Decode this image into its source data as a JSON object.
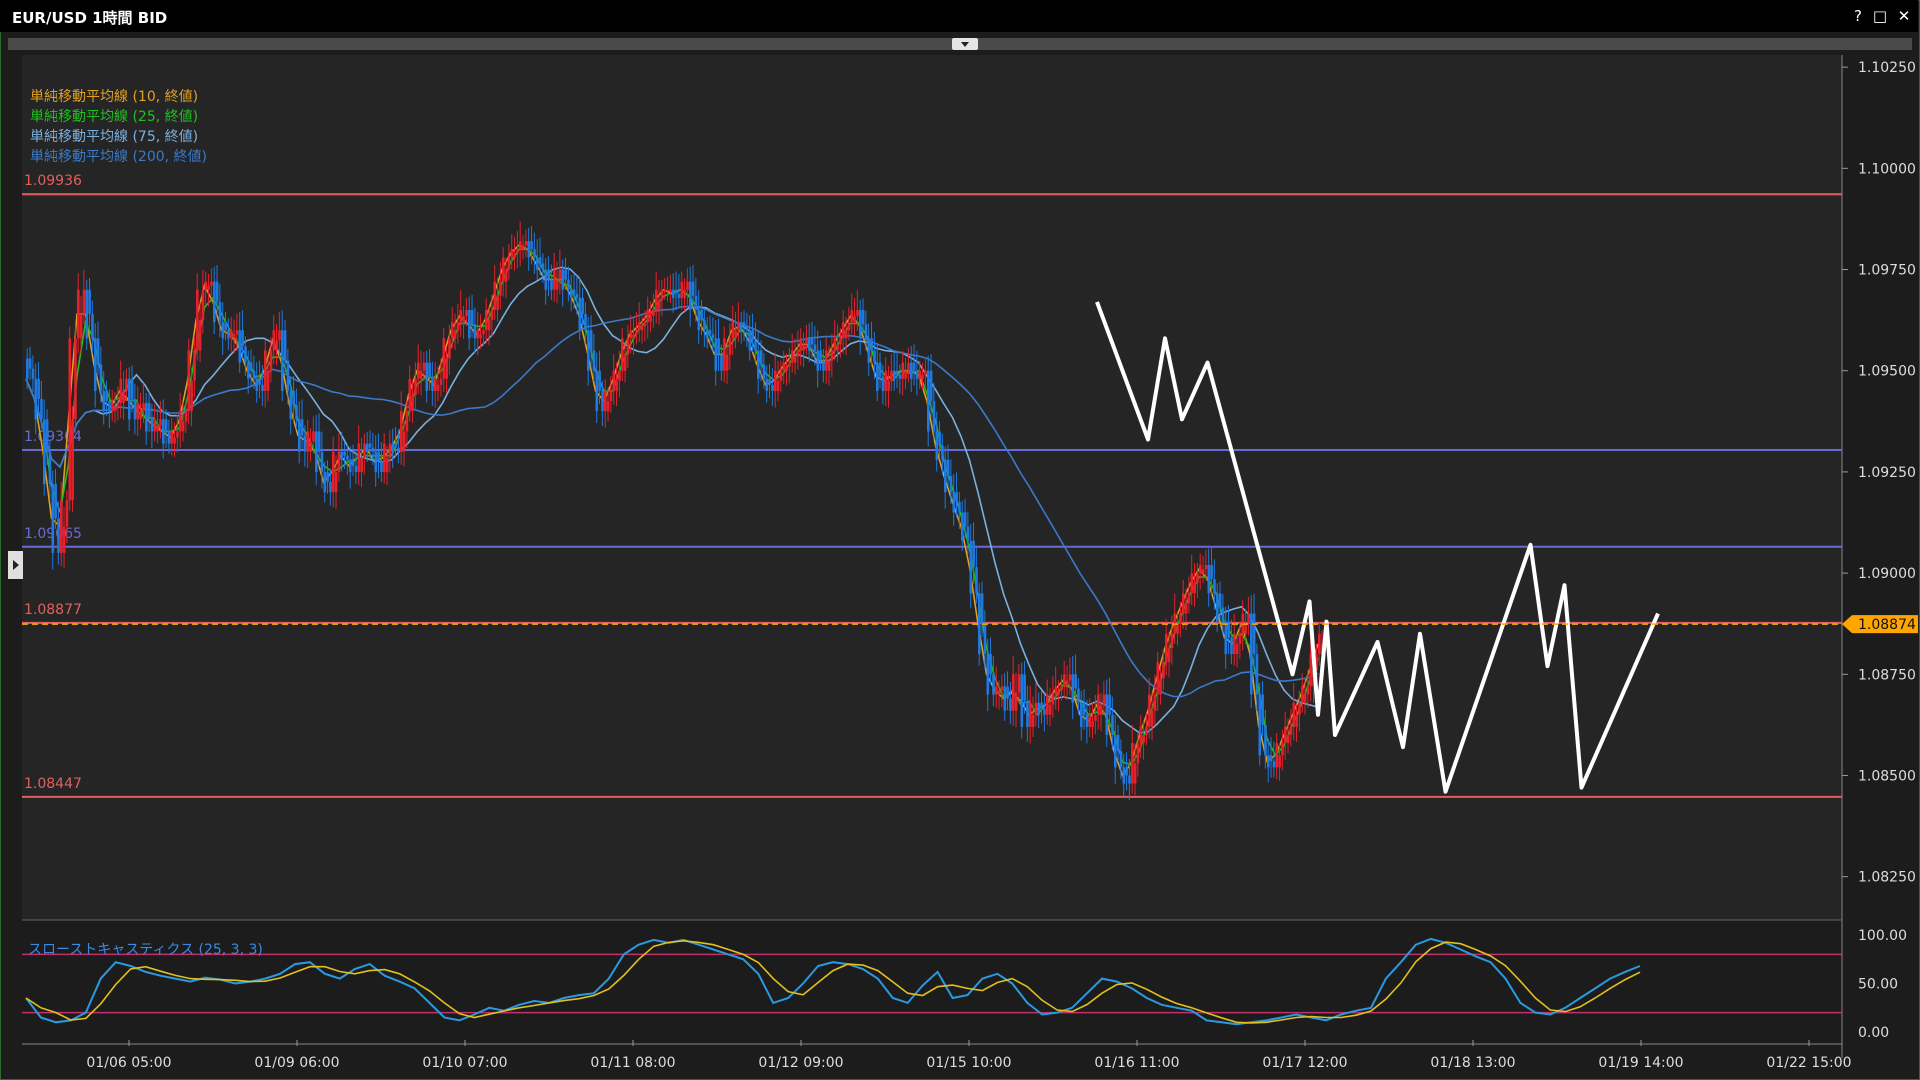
{
  "window": {
    "title": "EUR/USD 1時間 BID",
    "help": "?",
    "maximize": "□",
    "close": "✕"
  },
  "chart_data": {
    "type": "line",
    "symbol": "EUR/USD",
    "price_axis": {
      "min": 1.0818,
      "max": 1.1028,
      "ticks": [
        "1.10250",
        "1.10000",
        "1.09750",
        "1.09500",
        "1.09250",
        "1.09000",
        "1.08750",
        "1.08500",
        "1.08250"
      ]
    },
    "time_axis": {
      "ticks": [
        "01/06 05:00",
        "01/09 06:00",
        "01/10 07:00",
        "01/11 08:00",
        "01/12 09:00",
        "01/15 10:00",
        "01/16 11:00",
        "01/17 12:00",
        "01/18 13:00",
        "01/19 14:00",
        "01/22 15:00"
      ]
    },
    "current_price": {
      "label": "1.08874",
      "value": 1.08874,
      "color": "#ffa500"
    },
    "horizontal_lines": [
      {
        "label": "1.09936",
        "value": 1.09936,
        "color": "#e06060"
      },
      {
        "label": "1.09304",
        "value": 1.09304,
        "color": "#6a6ad6"
      },
      {
        "label": "1.09065",
        "value": 1.09065,
        "color": "#6a6ad6"
      },
      {
        "label": "1.08877",
        "value": 1.08877,
        "color": "#e06060"
      },
      {
        "label": "1.08447",
        "value": 1.08447,
        "color": "#e06060"
      }
    ],
    "legend": [
      {
        "name": "単純移動平均線 (10, 終値)",
        "color": "#e0a020"
      },
      {
        "name": "単純移動平均線 (25, 終値)",
        "color": "#20c020"
      },
      {
        "name": "単純移動平均線 (75, 終値)",
        "color": "#7ab0e0"
      },
      {
        "name": "単純移動平均線 (200, 終値)",
        "color": "#3a7ac8"
      }
    ],
    "colors": {
      "up": "#e8202a",
      "down": "#1e7ae0",
      "grid_bg": "#252525",
      "zigzag": "#ffffff"
    },
    "close_series": [
      1.0948,
      1.0938,
      1.0922,
      1.0905,
      1.0918,
      1.0958,
      1.097,
      1.0958,
      1.0945,
      1.094,
      1.0942,
      1.0948,
      1.0938,
      1.0942,
      1.0935,
      1.0938,
      1.0932,
      1.0935,
      1.094,
      1.0955,
      1.097,
      1.0972,
      1.0962,
      1.0958,
      1.096,
      1.0952,
      1.0948,
      1.0945,
      1.0955,
      1.096,
      1.0945,
      1.0938,
      1.093,
      1.0935,
      1.0925,
      1.092,
      1.093,
      1.0928,
      1.0925,
      1.0932,
      1.093,
      1.0925,
      1.0932,
      1.093,
      1.094,
      1.0948,
      1.0952,
      1.0945,
      1.0948,
      1.0958,
      1.0962,
      1.0965,
      1.0958,
      1.096,
      1.0965,
      1.0972,
      1.0978,
      1.098,
      1.0982,
      1.0978,
      1.0975,
      1.097,
      1.0975,
      1.097,
      1.0968,
      1.096,
      1.095,
      1.094,
      1.0945,
      1.095,
      1.0958,
      1.096,
      1.0962,
      1.0965,
      1.097,
      1.097,
      1.0968,
      1.0972,
      1.0965,
      1.096,
      1.0958,
      1.095,
      1.0958,
      1.0962,
      1.096,
      1.0955,
      1.0948,
      1.0945,
      1.095,
      1.0952,
      1.0955,
      1.0958,
      1.0955,
      1.095,
      1.0955,
      1.0958,
      1.0962,
      1.0965,
      1.0958,
      1.0952,
      1.0945,
      1.095,
      1.0948,
      1.0952,
      1.0948,
      1.095,
      1.0935,
      1.0928,
      1.092,
      1.0915,
      1.0908,
      1.0895,
      1.088,
      1.087,
      1.0872,
      1.0866,
      1.0875,
      1.0862,
      1.0868,
      1.0865,
      1.087,
      1.0872,
      1.0875,
      1.0868,
      1.0862,
      1.0865,
      1.087,
      1.086,
      1.0852,
      1.0848,
      1.0858,
      1.0862,
      1.087,
      1.0878,
      1.0885,
      1.089,
      1.0895,
      1.09,
      1.0902,
      1.0895,
      1.0888,
      1.088,
      1.0885,
      1.089,
      1.087,
      1.0855,
      1.0852,
      1.0858,
      1.0862,
      1.0868,
      1.0872,
      1.088,
      1.0885
    ],
    "ma": [
      {
        "period": 10,
        "color": "#e0a020"
      },
      {
        "period": 25,
        "color": "#20c020"
      },
      {
        "period": 75,
        "color": "#7ab0e0"
      },
      {
        "period": 200,
        "color": "#3a7ac8"
      }
    ],
    "zigzag": [
      [
        1.0967,
        126
      ],
      [
        1.0933,
        132
      ],
      [
        1.0958,
        134
      ],
      [
        1.0938,
        136
      ],
      [
        1.0952,
        139
      ],
      [
        1.0875,
        149
      ],
      [
        1.0893,
        151
      ],
      [
        1.0865,
        152
      ],
      [
        1.0888,
        153
      ],
      [
        1.086,
        154
      ],
      [
        1.0883,
        159
      ],
      [
        1.0857,
        162
      ],
      [
        1.0885,
        164
      ],
      [
        1.0846,
        167
      ],
      [
        1.0907,
        177
      ],
      [
        1.0877,
        179
      ],
      [
        1.0897,
        181
      ],
      [
        1.0847,
        183
      ],
      [
        1.089,
        192
      ]
    ],
    "oscillator": {
      "title": "スローストキャスティクス (25, 3, 3)",
      "range": [
        0,
        100
      ],
      "ticks": [
        "100.00",
        "50.00",
        "0.00"
      ],
      "levels": [
        80,
        20
      ],
      "k_color": "#2a9ae0",
      "d_color": "#e0c020",
      "k": [
        35,
        15,
        10,
        12,
        20,
        55,
        72,
        68,
        62,
        58,
        55,
        52,
        56,
        54,
        50,
        52,
        55,
        60,
        70,
        72,
        60,
        55,
        65,
        70,
        58,
        52,
        45,
        30,
        15,
        12,
        18,
        25,
        22,
        28,
        32,
        30,
        35,
        38,
        40,
        55,
        80,
        90,
        95,
        92,
        95,
        90,
        85,
        80,
        75,
        60,
        30,
        35,
        50,
        68,
        72,
        70,
        65,
        55,
        35,
        30,
        48,
        62,
        35,
        38,
        55,
        60,
        50,
        30,
        18,
        20,
        25,
        40,
        55,
        52,
        45,
        35,
        28,
        25,
        22,
        12,
        10,
        8,
        10,
        12,
        15,
        18,
        15,
        12,
        18,
        22,
        25,
        55,
        72,
        90,
        96,
        92,
        85,
        78,
        72,
        55,
        30,
        20,
        18,
        25,
        35,
        45,
        55,
        62,
        68
      ]
    }
  }
}
